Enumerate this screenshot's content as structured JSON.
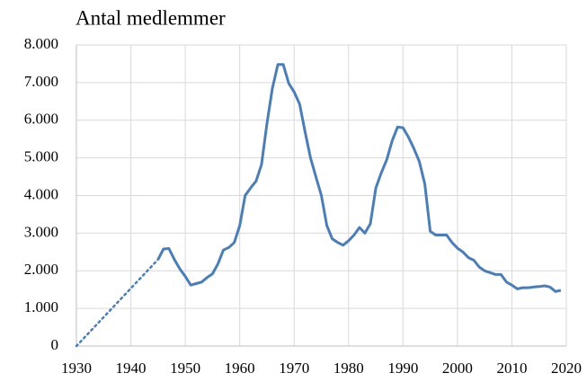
{
  "chart_data": {
    "type": "line",
    "title": "Antal medlemmer",
    "series": [
      {
        "color": "#4a7ebb",
        "dash": "dotted",
        "x": [
          1930,
          1945
        ],
        "values": [
          0,
          2300
        ]
      },
      {
        "color": "#4a7ebb",
        "dash": "solid",
        "x": [
          1945,
          1946,
          1947,
          1948,
          1949,
          1950,
          1951,
          1952,
          1953,
          1954,
          1955,
          1956,
          1957,
          1958,
          1959,
          1960,
          1961,
          1962,
          1963,
          1964,
          1965,
          1966,
          1967,
          1968,
          1969,
          1970,
          1971,
          1972,
          1973,
          1974,
          1975,
          1976,
          1977,
          1978,
          1979,
          1980,
          1981,
          1982,
          1983,
          1984,
          1985,
          1986,
          1987,
          1988,
          1989,
          1990,
          1991,
          1992,
          1993,
          1994,
          1995,
          1996,
          1997,
          1998,
          1999,
          2000,
          2001,
          2002,
          2003,
          2004,
          2005,
          2006,
          2007,
          2008,
          2009,
          2010,
          2011,
          2012,
          2013,
          2014,
          2015,
          2016,
          2017,
          2018,
          2019
        ],
        "values": [
          2300,
          2580,
          2590,
          2300,
          2050,
          1850,
          1620,
          1660,
          1700,
          1820,
          1920,
          2180,
          2550,
          2620,
          2750,
          3200,
          4000,
          4200,
          4380,
          4820,
          5900,
          6850,
          7480,
          7480,
          6980,
          6750,
          6430,
          5700,
          5000,
          4500,
          4000,
          3200,
          2850,
          2750,
          2680,
          2800,
          2950,
          3150,
          3000,
          3250,
          4200,
          4600,
          4950,
          5450,
          5820,
          5800,
          5550,
          5250,
          4900,
          4300,
          3050,
          2950,
          2950,
          2950,
          2750,
          2600,
          2500,
          2350,
          2280,
          2100,
          2000,
          1950,
          1900,
          1900,
          1700,
          1620,
          1520,
          1550,
          1550,
          1570,
          1580,
          1600,
          1570,
          1450,
          1480
        ]
      }
    ],
    "xlim": [
      1930,
      2020
    ],
    "xticks": [
      1930,
      1940,
      1950,
      1960,
      1970,
      1980,
      1990,
      2000,
      2010,
      2020
    ],
    "ylim": [
      0,
      8000
    ],
    "yticks": [
      0,
      {
        "value": 1000,
        "label": "1.000"
      },
      {
        "value": 2000,
        "label": "2.000"
      },
      {
        "value": 3000,
        "label": "3.000"
      },
      {
        "value": 4000,
        "label": "4.000"
      },
      {
        "value": 5000,
        "label": "5.000"
      },
      {
        "value": 6000,
        "label": "6.000"
      },
      {
        "value": 7000,
        "label": "7.000"
      },
      {
        "value": 8000,
        "label": "8.000"
      }
    ],
    "grid": true
  }
}
